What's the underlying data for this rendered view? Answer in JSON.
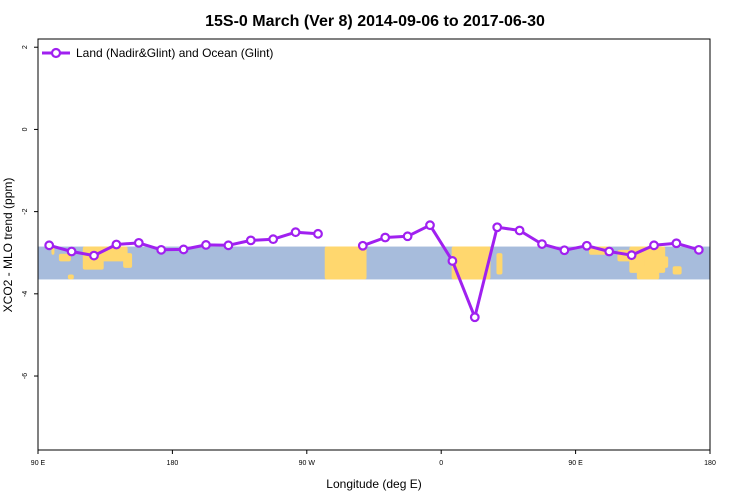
{
  "chart_data": {
    "type": "line",
    "title": "15S-0 March (Ver 8)   2014-09-06 to 2017-06-30",
    "xlabel": "Longitude (deg E)",
    "ylabel": "XCO2 - MLO trend (ppm)",
    "xlim": [
      90,
      540
    ],
    "ylim": [
      -7.8,
      2.2
    ],
    "x_ticks": [
      {
        "value": 90,
        "label": "90 E"
      },
      {
        "value": 180,
        "label": "180"
      },
      {
        "value": 270,
        "label": "90 W"
      },
      {
        "value": 360,
        "label": "0"
      },
      {
        "value": 450,
        "label": "90 E"
      },
      {
        "value": 540,
        "label": "180"
      }
    ],
    "y_ticks": [
      {
        "value": 2,
        "label": "2"
      },
      {
        "value": 0,
        "label": "0"
      },
      {
        "value": -2,
        "label": "-2"
      },
      {
        "value": -4,
        "label": "-4"
      },
      {
        "value": -6,
        "label": "-6"
      }
    ],
    "map_band": {
      "lat_range": [
        -15,
        0
      ],
      "y_range": [
        -3.65,
        -2.85
      ],
      "ocean_color": "#a7bcdc",
      "land_color": "#ffd76e"
    },
    "legend": {
      "position": "top-left"
    },
    "series": [
      {
        "name": "Land (Nadir&Glint) and Ocean (Glint)",
        "color": "#a020f0",
        "segments": [
          [
            [
              97.5,
              -2.82
            ],
            [
              112.5,
              -2.97
            ],
            [
              127.5,
              -3.07
            ],
            [
              142.5,
              -2.8
            ],
            [
              157.5,
              -2.76
            ],
            [
              172.5,
              -2.93
            ],
            [
              187.5,
              -2.92
            ],
            [
              202.5,
              -2.81
            ],
            [
              217.5,
              -2.82
            ],
            [
              232.5,
              -2.7
            ],
            [
              247.5,
              -2.67
            ],
            [
              262.5,
              -2.5
            ],
            [
              277.5,
              -2.54
            ]
          ],
          [
            [
              307.5,
              -2.83
            ],
            [
              322.5,
              -2.63
            ],
            [
              337.5,
              -2.6
            ],
            [
              352.5,
              -2.33
            ],
            [
              367.5,
              -3.2
            ],
            [
              382.5,
              -4.57
            ],
            [
              397.5,
              -2.38
            ],
            [
              412.5,
              -2.46
            ],
            [
              427.5,
              -2.79
            ],
            [
              442.5,
              -2.94
            ],
            [
              457.5,
              -2.83
            ],
            [
              472.5,
              -2.97
            ],
            [
              487.5,
              -3.06
            ],
            [
              502.5,
              -2.82
            ],
            [
              517.5,
              -2.77
            ],
            [
              532.5,
              -2.93
            ]
          ]
        ]
      }
    ]
  }
}
